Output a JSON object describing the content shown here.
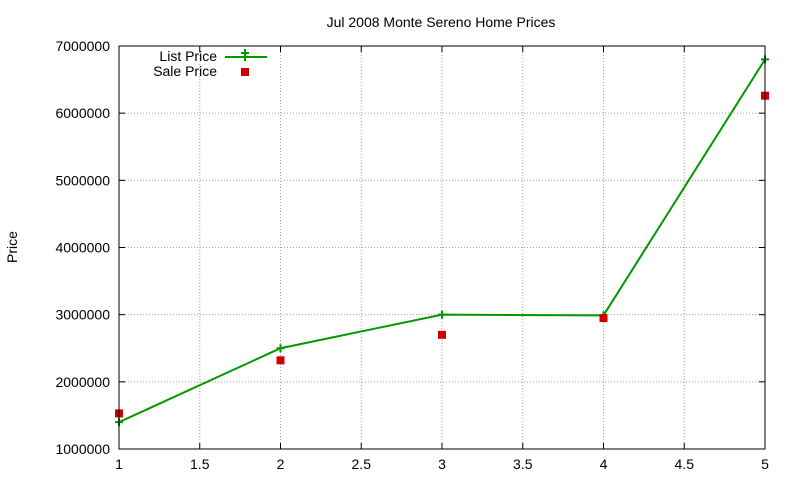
{
  "chart_data": {
    "type": "line",
    "title": "Jul 2008 Monte Sereno Home Prices",
    "xlabel": "",
    "ylabel": "Price",
    "xlim": [
      1,
      5
    ],
    "ylim": [
      1000000,
      7000000
    ],
    "x_ticks": [
      "1",
      "1.5",
      "2",
      "2.5",
      "3",
      "3.5",
      "4",
      "4.5",
      "5"
    ],
    "y_ticks": [
      "1000000",
      "2000000",
      "3000000",
      "4000000",
      "5000000",
      "6000000",
      "7000000"
    ],
    "grid": true,
    "legend_position": "top-left",
    "series": [
      {
        "name": "List Price",
        "style": "line+points",
        "color": "#009900",
        "x": [
          1,
          2,
          3,
          4,
          5
        ],
        "y": [
          1400000,
          2500000,
          3000000,
          2990000,
          6800000
        ]
      },
      {
        "name": "Sale Price",
        "style": "points",
        "color": "#cc0000",
        "x": [
          1,
          2,
          3,
          4,
          5
        ],
        "y": [
          1530000,
          2320000,
          2700000,
          2950000,
          6260000
        ]
      }
    ]
  }
}
